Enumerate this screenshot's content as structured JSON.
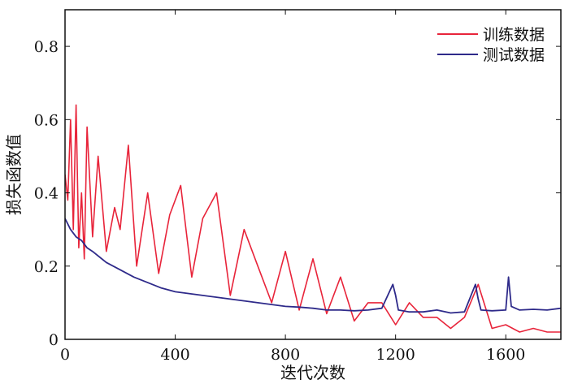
{
  "chart_data": {
    "type": "line",
    "title": "",
    "xlabel": "迭代次数",
    "ylabel": "损失函数值",
    "xlim": [
      0,
      1800
    ],
    "ylim": [
      0,
      0.9
    ],
    "x_ticks": [
      0,
      400,
      800,
      1200,
      1600
    ],
    "x_tick_labels": [
      "0",
      "400",
      "800",
      "1200",
      "1600"
    ],
    "y_ticks": [
      0,
      0.2,
      0.4,
      0.6,
      0.8
    ],
    "y_tick_labels": [
      "0",
      "0.2",
      "0.4",
      "0.6",
      "0.8"
    ],
    "grid": false,
    "legend_position": "top-right",
    "series": [
      {
        "name": "训练数据",
        "color": "#e8243a",
        "x": [
          0,
          10,
          20,
          30,
          40,
          50,
          60,
          70,
          80,
          100,
          120,
          150,
          180,
          200,
          230,
          260,
          300,
          340,
          380,
          420,
          460,
          500,
          550,
          600,
          650,
          700,
          750,
          800,
          850,
          900,
          950,
          1000,
          1050,
          1100,
          1150,
          1200,
          1250,
          1300,
          1350,
          1400,
          1450,
          1500,
          1550,
          1600,
          1650,
          1700,
          1750,
          1800
        ],
        "values": [
          0.45,
          0.38,
          0.6,
          0.3,
          0.64,
          0.25,
          0.4,
          0.22,
          0.58,
          0.28,
          0.5,
          0.24,
          0.36,
          0.3,
          0.53,
          0.2,
          0.4,
          0.18,
          0.34,
          0.42,
          0.17,
          0.33,
          0.4,
          0.12,
          0.3,
          0.2,
          0.1,
          0.24,
          0.08,
          0.22,
          0.07,
          0.17,
          0.05,
          0.1,
          0.1,
          0.04,
          0.1,
          0.06,
          0.06,
          0.03,
          0.06,
          0.15,
          0.03,
          0.04,
          0.02,
          0.03,
          0.02,
          0.02
        ]
      },
      {
        "name": "测试数据",
        "color": "#2e2a8a",
        "x": [
          0,
          20,
          40,
          60,
          80,
          100,
          150,
          200,
          250,
          300,
          350,
          400,
          450,
          500,
          550,
          600,
          650,
          700,
          750,
          800,
          850,
          900,
          950,
          1000,
          1050,
          1100,
          1150,
          1190,
          1200,
          1210,
          1250,
          1300,
          1350,
          1400,
          1450,
          1490,
          1500,
          1510,
          1550,
          1600,
          1610,
          1620,
          1650,
          1700,
          1750,
          1800
        ],
        "values": [
          0.33,
          0.3,
          0.28,
          0.27,
          0.25,
          0.24,
          0.21,
          0.19,
          0.17,
          0.155,
          0.14,
          0.13,
          0.125,
          0.12,
          0.115,
          0.11,
          0.105,
          0.1,
          0.095,
          0.09,
          0.088,
          0.085,
          0.08,
          0.08,
          0.078,
          0.08,
          0.085,
          0.15,
          0.12,
          0.08,
          0.075,
          0.075,
          0.08,
          0.072,
          0.075,
          0.15,
          0.11,
          0.08,
          0.078,
          0.08,
          0.17,
          0.09,
          0.08,
          0.082,
          0.08,
          0.085
        ]
      }
    ]
  }
}
